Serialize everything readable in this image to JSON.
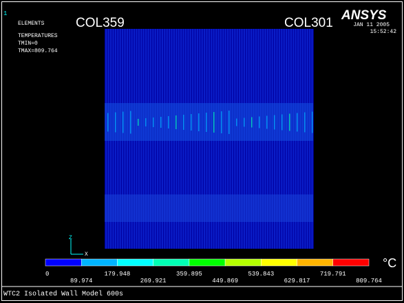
{
  "window_number": "1",
  "header": {
    "entity": "ELEMENTS",
    "result": "TEMPERATURES",
    "tmin": "TMIN=0",
    "tmax": "TMAX=809.764"
  },
  "labels": {
    "left_column": "COL359",
    "right_column": "COL301"
  },
  "logo": "ANSYS",
  "date": "JAN 11 2005",
  "time": "15:52:42",
  "triad": {
    "z": "Z",
    "x": "X"
  },
  "legend": {
    "unit": "°C",
    "colors": [
      "#0000ff",
      "#00b4ff",
      "#00ffff",
      "#00ffb4",
      "#00ff00",
      "#b4ff00",
      "#ffff00",
      "#ffb400",
      "#ff0000"
    ],
    "values": [
      0,
      89.974,
      179.948,
      269.921,
      359.895,
      449.869,
      539.843,
      629.817,
      719.791,
      809.764
    ]
  },
  "footer": "WTC2 Isolated Wall Model 600s"
}
